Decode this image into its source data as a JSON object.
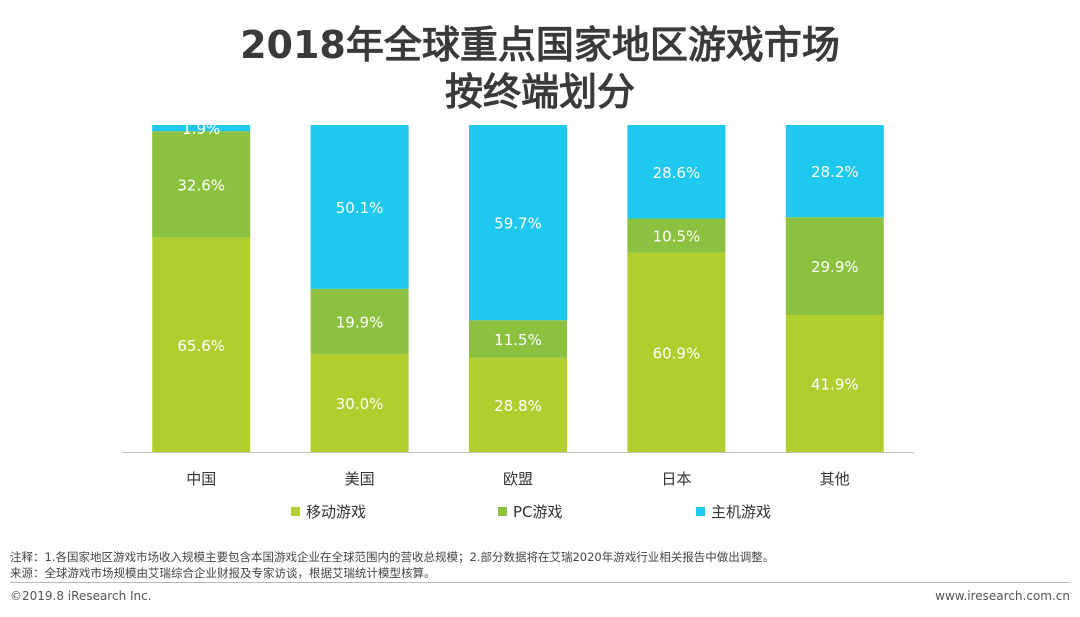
{
  "title_line1": "2018年全球重点国家地区游戏市场",
  "title_line2": "按终端划分",
  "chart_data": {
    "type": "bar",
    "stacked": true,
    "percent": true,
    "categories": [
      "中国",
      "美国",
      "欧盟",
      "日本",
      "其他"
    ],
    "series": [
      {
        "name": "移动游戏",
        "values": [
          65.6,
          30.0,
          28.8,
          60.9,
          41.9
        ],
        "color": "#b0cf2f"
      },
      {
        "name": "PC游戏",
        "values": [
          32.6,
          19.9,
          11.5,
          10.5,
          29.9
        ],
        "color": "#8cc13f"
      },
      {
        "name": "主机游戏",
        "values": [
          1.9,
          50.1,
          59.7,
          28.6,
          28.2
        ],
        "color": "#1ec8ee"
      }
    ],
    "ylim": [
      0,
      100
    ],
    "legend_position": "bottom"
  },
  "notes": {
    "line1": "注释：1.各国家地区游戏市场收入规模主要包含本国游戏企业在全球范围内的营收总规模；2.部分数据将在艾瑞2020年游戏行业相关报告中做出调整。",
    "line2": "来源：全球游戏市场规模由艾瑞综合企业财报及专家访谈，根据艾瑞统计模型核算。"
  },
  "footer": {
    "left": "©2019.8 iResearch Inc.",
    "right": "www.iresearch.com.cn"
  }
}
